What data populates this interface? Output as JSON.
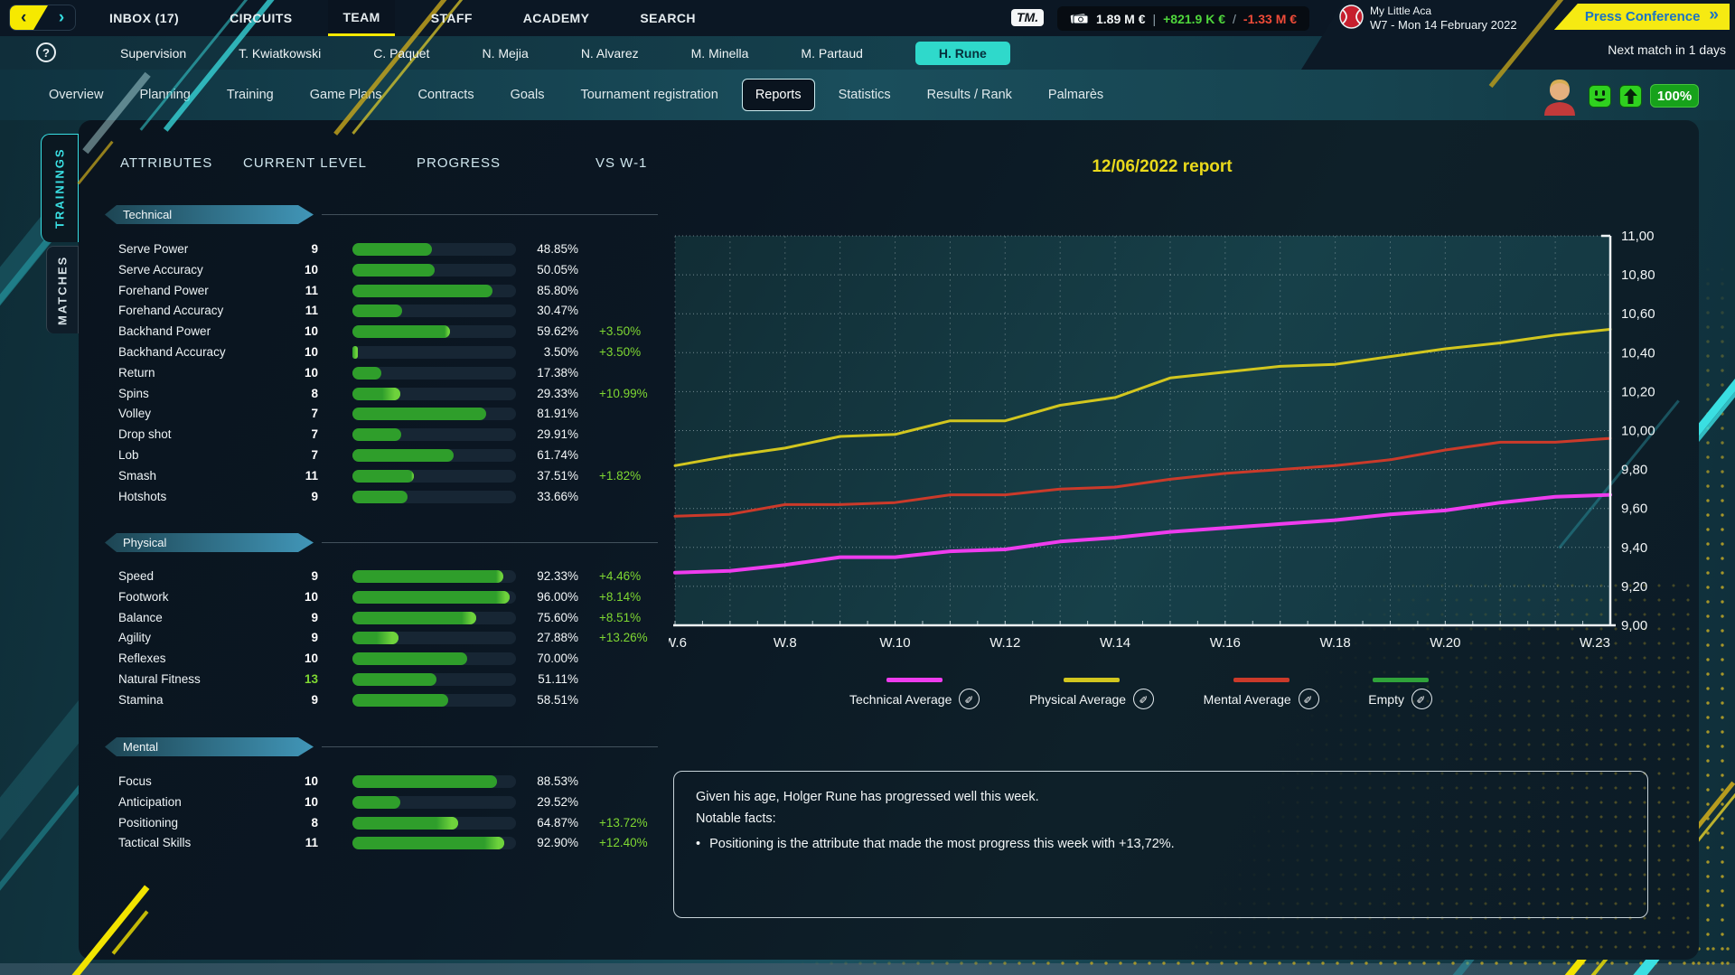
{
  "top_nav": {
    "back_icon": "‹",
    "forward_icon": "›",
    "items": [
      "INBOX (17)",
      "CIRCUITS",
      "TEAM",
      "STAFF",
      "ACADEMY",
      "SEARCH"
    ],
    "active": "TEAM",
    "tm_logo": "TM.",
    "finance": {
      "balance": "1.89 M €",
      "sep1": "|",
      "income": "+821.9 K €",
      "sep2": "/",
      "expenses": "-1.33 M €"
    },
    "club": {
      "name": "My Little Aca",
      "date": "W7 - Mon 14 February 2022"
    },
    "press_conference_label": "Press Conference",
    "press_conference_chevron": "»",
    "next_match": "Next match in 1 days"
  },
  "players_row": {
    "help_icon": "?",
    "items": [
      "Supervision",
      "T. Kwiatkowski",
      "C. Paquet",
      "N. Mejia",
      "N. Alvarez",
      "M. Minella",
      "M. Partaud",
      "H. Rune"
    ],
    "active": "H. Rune"
  },
  "section_tabs": {
    "items": [
      "Overview",
      "Planning",
      "Training",
      "Game Plans",
      "Contracts",
      "Goals",
      "Tournament registration",
      "Reports",
      "Statistics",
      "Results / Rank",
      "Palmarès"
    ],
    "active": "Reports"
  },
  "morale": {
    "fitness_label": "100%"
  },
  "side_tabs": {
    "items": [
      "TRAININGS",
      "MATCHES"
    ],
    "active": "TRAININGS"
  },
  "attributes_panel": {
    "headers": [
      "ATTRIBUTES",
      "CURRENT LEVEL",
      "PROGRESS",
      "VS W-1"
    ],
    "sections": [
      {
        "title": "Technical",
        "rows": [
          {
            "label": "Serve Power",
            "level": "9",
            "progress": 48.85,
            "progress_label": "48.85%",
            "delta": null,
            "delta_value": 0
          },
          {
            "label": "Serve Accuracy",
            "level": "10",
            "progress": 50.05,
            "progress_label": "50.05%",
            "delta": null,
            "delta_value": 0
          },
          {
            "label": "Forehand Power",
            "level": "11",
            "progress": 85.8,
            "progress_label": "85.80%",
            "delta": null,
            "delta_value": 0
          },
          {
            "label": "Forehand Accuracy",
            "level": "11",
            "progress": 30.47,
            "progress_label": "30.47%",
            "delta": null,
            "delta_value": 0
          },
          {
            "label": "Backhand Power",
            "level": "10",
            "progress": 59.62,
            "progress_label": "59.62%",
            "delta": "+3.50%",
            "delta_value": 3.5
          },
          {
            "label": "Backhand Accuracy",
            "level": "10",
            "progress": 3.5,
            "progress_label": "3.50%",
            "delta": "+3.50%",
            "delta_value": 3.5
          },
          {
            "label": "Return",
            "level": "10",
            "progress": 17.38,
            "progress_label": "17.38%",
            "delta": null,
            "delta_value": 0
          },
          {
            "label": "Spins",
            "level": "8",
            "progress": 29.33,
            "progress_label": "29.33%",
            "delta": "+10.99%",
            "delta_value": 10.99
          },
          {
            "label": "Volley",
            "level": "7",
            "progress": 81.91,
            "progress_label": "81.91%",
            "delta": null,
            "delta_value": 0
          },
          {
            "label": "Drop shot",
            "level": "7",
            "progress": 29.91,
            "progress_label": "29.91%",
            "delta": null,
            "delta_value": 0
          },
          {
            "label": "Lob",
            "level": "7",
            "progress": 61.74,
            "progress_label": "61.74%",
            "delta": null,
            "delta_value": 0
          },
          {
            "label": "Smash",
            "level": "11",
            "progress": 37.51,
            "progress_label": "37.51%",
            "delta": "+1.82%",
            "delta_value": 1.82
          },
          {
            "label": "Hotshots",
            "level": "9",
            "progress": 33.66,
            "progress_label": "33.66%",
            "delta": null,
            "delta_value": 0
          }
        ]
      },
      {
        "title": "Physical",
        "rows": [
          {
            "label": "Speed",
            "level": "9",
            "progress": 92.33,
            "progress_label": "92.33%",
            "delta": "+4.46%",
            "delta_value": 4.46
          },
          {
            "label": "Footwork",
            "level": "10",
            "progress": 96.0,
            "progress_label": "96.00%",
            "delta": "+8.14%",
            "delta_value": 8.14
          },
          {
            "label": "Balance",
            "level": "9",
            "progress": 75.6,
            "progress_label": "75.60%",
            "delta": "+8.51%",
            "delta_value": 8.51
          },
          {
            "label": "Agility",
            "level": "9",
            "progress": 27.88,
            "progress_label": "27.88%",
            "delta": "+13.26%",
            "delta_value": 13.26
          },
          {
            "label": "Reflexes",
            "level": "10",
            "progress": 70.0,
            "progress_label": "70.00%",
            "delta": null,
            "delta_value": 0
          },
          {
            "label": "Natural Fitness",
            "level": "13",
            "level_highlight": true,
            "progress": 51.11,
            "progress_label": "51.11%",
            "delta": null,
            "delta_value": 0
          },
          {
            "label": "Stamina",
            "level": "9",
            "progress": 58.51,
            "progress_label": "58.51%",
            "delta": null,
            "delta_value": 0
          }
        ]
      },
      {
        "title": "Mental",
        "rows": [
          {
            "label": "Focus",
            "level": "10",
            "progress": 88.53,
            "progress_label": "88.53%",
            "delta": null,
            "delta_value": 0
          },
          {
            "label": "Anticipation",
            "level": "10",
            "progress": 29.52,
            "progress_label": "29.52%",
            "delta": null,
            "delta_value": 0
          },
          {
            "label": "Positioning",
            "level": "8",
            "progress": 64.87,
            "progress_label": "64.87%",
            "delta": "+13.72%",
            "delta_value": 13.72
          },
          {
            "label": "Tactical Skills",
            "level": "11",
            "progress": 92.9,
            "progress_label": "92.90%",
            "delta": "+12.40%",
            "delta_value": 12.4
          }
        ]
      }
    ]
  },
  "report": {
    "title": "12/06/2022 report",
    "legend_edit_icon": "✎",
    "chart_data": {
      "type": "line",
      "categories": [
        "W.6",
        "W.7",
        "W.8",
        "W.9",
        "W.10",
        "W.11",
        "W.12",
        "W.13",
        "W.14",
        "W.15",
        "W.16",
        "W.17",
        "W.18",
        "W.19",
        "W.20",
        "W.21",
        "W.22",
        "W.23"
      ],
      "x_tick_labels": [
        {
          "index": 0,
          "label": "W.6"
        },
        {
          "index": 2,
          "label": "W.8"
        },
        {
          "index": 4,
          "label": "W.10"
        },
        {
          "index": 6,
          "label": "W.12"
        },
        {
          "index": 8,
          "label": "W.14"
        },
        {
          "index": 10,
          "label": "W.16"
        },
        {
          "index": 12,
          "label": "W.18"
        },
        {
          "index": 14,
          "label": "W.20"
        },
        {
          "index": 17,
          "label": "W.23"
        }
      ],
      "y_ticks": [
        {
          "value": 11.0,
          "label": "11,00"
        },
        {
          "value": 10.8,
          "label": "10,80"
        },
        {
          "value": 10.6,
          "label": "10,60"
        },
        {
          "value": 10.4,
          "label": "10,40"
        },
        {
          "value": 10.2,
          "label": "10,20"
        },
        {
          "value": 10.0,
          "label": "10,00"
        },
        {
          "value": 9.8,
          "label": "9,80"
        },
        {
          "value": 9.6,
          "label": "9,60"
        },
        {
          "value": 9.4,
          "label": "9,40"
        },
        {
          "value": 9.2,
          "label": "9,20"
        },
        {
          "value": 9.0,
          "label": "9,00"
        }
      ],
      "ylim": [
        9.0,
        11.0
      ],
      "grid": true,
      "legend_position": "bottom",
      "series": [
        {
          "name": "Technical Average",
          "color": "#ee3cee",
          "values": [
            9.27,
            9.28,
            9.31,
            9.35,
            9.35,
            9.38,
            9.39,
            9.43,
            9.45,
            9.48,
            9.5,
            9.52,
            9.54,
            9.57,
            9.59,
            9.63,
            9.66,
            9.67
          ]
        },
        {
          "name": "Physical Average",
          "color": "#d2c61f",
          "values": [
            9.82,
            9.87,
            9.91,
            9.97,
            9.98,
            10.05,
            10.05,
            10.13,
            10.17,
            10.27,
            10.3,
            10.33,
            10.34,
            10.38,
            10.42,
            10.45,
            10.49,
            10.52
          ]
        },
        {
          "name": "Mental Average",
          "color": "#cb3a2a",
          "values": [
            9.56,
            9.57,
            9.62,
            9.62,
            9.63,
            9.67,
            9.67,
            9.7,
            9.71,
            9.75,
            9.78,
            9.8,
            9.82,
            9.85,
            9.9,
            9.94,
            9.94,
            9.96
          ]
        },
        {
          "name": "Empty",
          "color": "#2fa33a",
          "values": []
        }
      ]
    },
    "notes": {
      "line1": "Given his age, Holger Rune has progressed well this week.",
      "line2": "Notable facts:",
      "bullet_icon": "•",
      "bullet": "Positioning is the attribute that made the most progress this week with +13,72%."
    }
  }
}
